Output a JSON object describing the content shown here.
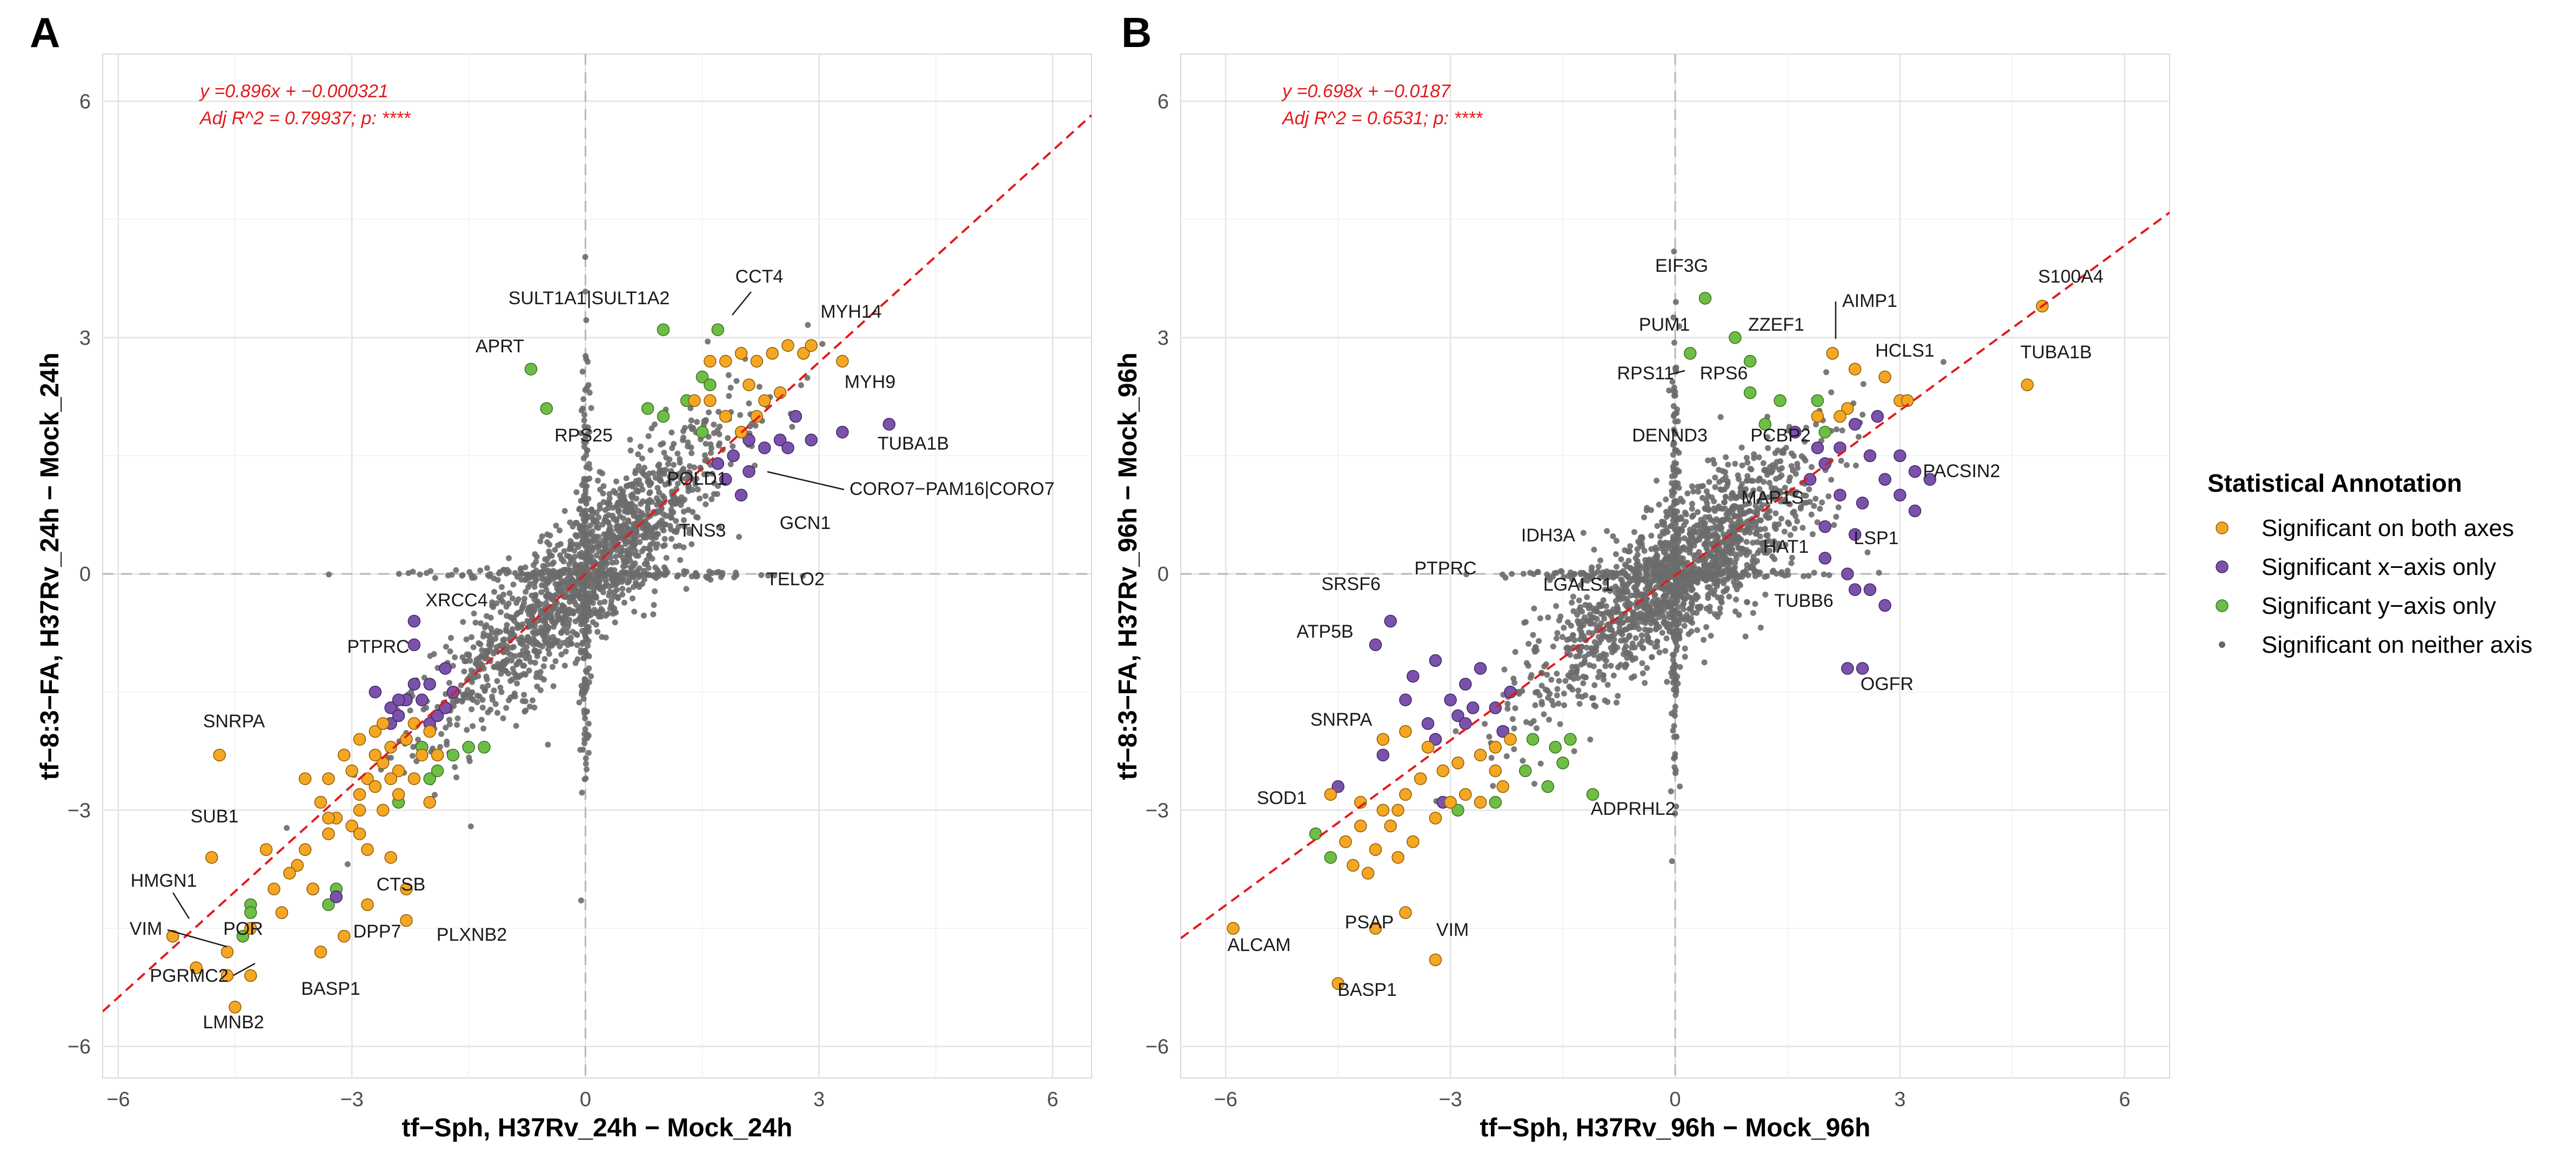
{
  "legend": {
    "title": "Statistical Annotation",
    "items": [
      {
        "label": "Significant on both axes",
        "color": "#F5A623",
        "size": "large"
      },
      {
        "label": "Significant x−axis only",
        "color": "#7B52AB",
        "size": "large"
      },
      {
        "label": "Significant y−axis only",
        "color": "#6DBE45",
        "size": "large"
      },
      {
        "label": "Significant on neither axis",
        "color": "#666666",
        "size": "small"
      }
    ]
  },
  "chart_data": [
    {
      "panel": "A",
      "type": "scatter",
      "xlabel": "tf−Sph, H37Rv_24h − Mock_24h",
      "ylabel": "tf−8:3−FA, H37Rv_24h − Mock_24h",
      "xlim": [
        -6.2,
        6.5
      ],
      "ylim": [
        -6.4,
        6.6
      ],
      "xticks": [
        -6,
        -3,
        0,
        3,
        6
      ],
      "yticks": [
        -6,
        -3,
        0,
        3,
        6
      ],
      "grid": true,
      "reference_lines": {
        "x": 0,
        "y": 0,
        "style": "dashed"
      },
      "regression": {
        "slope": 0.896,
        "intercept": -0.000321,
        "equation": "y =0.896x + −0.000321",
        "stats": "Adj R^2 = 0.79937; p: ****",
        "color": "#e31a1c"
      },
      "points": {
        "both": [
          [
            -4.7,
            -2.3
          ],
          [
            -4.8,
            -3.6
          ],
          [
            -4.6,
            -4.8
          ],
          [
            -5.0,
            -5.0
          ],
          [
            -4.6,
            -5.1
          ],
          [
            -5.3,
            -4.6
          ],
          [
            -4.3,
            -5.1
          ],
          [
            -4.5,
            -5.5
          ],
          [
            -4.3,
            -4.5
          ],
          [
            -4.0,
            -4.0
          ],
          [
            -3.9,
            -4.3
          ],
          [
            -3.5,
            -4.0
          ],
          [
            -3.4,
            -4.8
          ],
          [
            -3.1,
            -4.6
          ],
          [
            -3.7,
            -3.7
          ],
          [
            -3.6,
            -3.5
          ],
          [
            -3.3,
            -3.3
          ],
          [
            -3.2,
            -3.1
          ],
          [
            -3.0,
            -3.2
          ],
          [
            -2.9,
            -2.8
          ],
          [
            -2.8,
            -2.6
          ],
          [
            -2.6,
            -2.4
          ],
          [
            -2.5,
            -2.2
          ],
          [
            -2.4,
            -2.5
          ],
          [
            -2.3,
            -2.1
          ],
          [
            -2.2,
            -1.9
          ],
          [
            -2.1,
            -2.3
          ],
          [
            -2.0,
            -2.0
          ],
          [
            -2.7,
            -2.7
          ],
          [
            -2.6,
            -3.0
          ],
          [
            -2.9,
            -3.3
          ],
          [
            -3.3,
            -3.1
          ],
          [
            -3.6,
            -2.6
          ],
          [
            -3.4,
            -2.9
          ],
          [
            -2.9,
            -2.1
          ],
          [
            -2.7,
            -2.0
          ],
          [
            -3.0,
            -2.5
          ],
          [
            -2.5,
            -3.6
          ],
          [
            -2.3,
            -4.0
          ],
          [
            -2.3,
            -4.4
          ],
          [
            -2.8,
            -4.2
          ],
          [
            -2.8,
            -3.5
          ],
          [
            -3.8,
            -3.8
          ],
          [
            -4.1,
            -3.5
          ],
          [
            -3.3,
            -2.6
          ],
          [
            -2.0,
            -2.9
          ],
          [
            -1.9,
            -2.3
          ],
          [
            -2.2,
            -2.6
          ],
          [
            -2.4,
            -2.8
          ],
          [
            -2.6,
            -1.9
          ],
          [
            -3.1,
            -2.3
          ],
          [
            -2.9,
            -3.0
          ],
          [
            -2.7,
            -2.3
          ],
          [
            -2.5,
            -2.6
          ],
          [
            1.6,
            2.7
          ],
          [
            1.8,
            2.7
          ],
          [
            2.0,
            2.8
          ],
          [
            2.2,
            2.7
          ],
          [
            2.4,
            2.8
          ],
          [
            2.6,
            2.9
          ],
          [
            2.8,
            2.8
          ],
          [
            3.3,
            2.7
          ],
          [
            2.3,
            2.2
          ],
          [
            2.5,
            2.3
          ],
          [
            1.6,
            2.2
          ],
          [
            1.4,
            2.2
          ],
          [
            2.1,
            2.4
          ],
          [
            2.2,
            2.0
          ],
          [
            1.8,
            2.0
          ],
          [
            2.0,
            1.8
          ],
          [
            2.9,
            2.9
          ]
        ],
        "x_only": [
          [
            -2.2,
            -0.6
          ],
          [
            -2.2,
            -0.9
          ],
          [
            -2.3,
            -1.6
          ],
          [
            -2.1,
            -1.6
          ],
          [
            -2.0,
            -1.4
          ],
          [
            -1.8,
            -1.2
          ],
          [
            -1.7,
            -1.5
          ],
          [
            -2.5,
            -1.7
          ],
          [
            -2.5,
            -1.9
          ],
          [
            -2.7,
            -1.5
          ],
          [
            -2.0,
            -1.9
          ],
          [
            -1.9,
            -1.8
          ],
          [
            -1.8,
            -1.7
          ],
          [
            -2.4,
            -1.6
          ],
          [
            -2.2,
            -1.4
          ],
          [
            -3.2,
            -4.1
          ],
          [
            -3.5,
            -4.0
          ],
          [
            -2.4,
            -1.8
          ],
          [
            3.9,
            1.9
          ],
          [
            3.3,
            1.8
          ],
          [
            2.9,
            1.7
          ],
          [
            2.5,
            1.7
          ],
          [
            2.3,
            1.6
          ],
          [
            1.9,
            1.5
          ],
          [
            2.1,
            1.3
          ],
          [
            1.8,
            1.2
          ],
          [
            2.0,
            1.0
          ],
          [
            2.7,
            2.0
          ],
          [
            2.6,
            1.6
          ],
          [
            2.1,
            1.7
          ],
          [
            1.7,
            1.4
          ]
        ],
        "y_only": [
          [
            -1.7,
            -2.3
          ],
          [
            -1.5,
            -2.2
          ],
          [
            -1.3,
            -2.2
          ],
          [
            -1.9,
            -2.3
          ],
          [
            -2.0,
            -2.6
          ],
          [
            -1.9,
            -2.5
          ],
          [
            -2.1,
            -2.2
          ],
          [
            -3.2,
            -4.0
          ],
          [
            -3.3,
            -4.2
          ],
          [
            -2.4,
            -2.9
          ],
          [
            -4.3,
            -4.2
          ],
          [
            -4.3,
            -4.3
          ],
          [
            -4.4,
            -4.6
          ],
          [
            -0.7,
            2.6
          ],
          [
            -0.5,
            2.1
          ],
          [
            1.0,
            3.1
          ],
          [
            1.7,
            3.1
          ],
          [
            0.8,
            2.1
          ],
          [
            1.0,
            2.0
          ],
          [
            1.3,
            2.2
          ],
          [
            1.5,
            2.5
          ],
          [
            1.6,
            2.4
          ],
          [
            1.5,
            1.8
          ]
        ]
      },
      "labels": [
        "SULT1A1|SULT1A2",
        "CCT4",
        "MYH14",
        "APRT",
        "MYH9",
        "TUBA1B",
        "RPS25",
        "POLD1",
        "CORO7−PAM16|CORO7",
        "TNS3",
        "GCN1",
        "TELO2",
        "XRCC4",
        "PTPRC",
        "SNRPA",
        "SUB1",
        "HMGN1",
        "VIM",
        "POR",
        "PGRMC2",
        "DPP7",
        "CTSB",
        "PLXNB2",
        "BASP1",
        "LMNB2"
      ]
    },
    {
      "panel": "B",
      "type": "scatter",
      "xlabel": "tf−Sph, H37Rv_96h − Mock_96h",
      "ylabel": "tf−8:3−FA, H37Rv_96h − Mock_96h",
      "xlim": [
        -6.6,
        6.6
      ],
      "ylim": [
        -6.4,
        6.6
      ],
      "xticks": [
        -6,
        -3,
        0,
        3,
        6
      ],
      "yticks": [
        -6,
        -3,
        0,
        3,
        6
      ],
      "grid": true,
      "reference_lines": {
        "x": 0,
        "y": 0,
        "style": "dashed"
      },
      "regression": {
        "slope": 0.698,
        "intercept": -0.0187,
        "equation": "y =0.698x + −0.0187",
        "stats": "Adj R^2 = 0.6531; p: ****",
        "color": "#e31a1c"
      },
      "points": {
        "both": [
          [
            4.9,
            3.4
          ],
          [
            4.7,
            2.4
          ],
          [
            2.1,
            2.8
          ],
          [
            2.4,
            2.6
          ],
          [
            2.8,
            2.5
          ],
          [
            3.0,
            2.2
          ],
          [
            3.1,
            2.2
          ],
          [
            2.3,
            2.1
          ],
          [
            2.2,
            2.0
          ],
          [
            1.9,
            2.0
          ],
          [
            -5.9,
            -4.5
          ],
          [
            -4.5,
            -5.2
          ],
          [
            -3.2,
            -4.9
          ],
          [
            -3.6,
            -4.3
          ],
          [
            -4.0,
            -4.5
          ],
          [
            -4.1,
            -3.8
          ],
          [
            -4.3,
            -3.7
          ],
          [
            -4.4,
            -3.4
          ],
          [
            -4.0,
            -3.5
          ],
          [
            -3.8,
            -3.2
          ],
          [
            -3.7,
            -3.0
          ],
          [
            -3.6,
            -2.8
          ],
          [
            -3.4,
            -2.6
          ],
          [
            -3.1,
            -2.5
          ],
          [
            -2.9,
            -2.4
          ],
          [
            -2.6,
            -2.3
          ],
          [
            -2.4,
            -2.2
          ],
          [
            -2.2,
            -2.1
          ],
          [
            -3.5,
            -3.4
          ],
          [
            -3.2,
            -3.1
          ],
          [
            -3.0,
            -2.9
          ],
          [
            -2.8,
            -2.8
          ],
          [
            -2.6,
            -2.9
          ],
          [
            -3.9,
            -3.0
          ],
          [
            -4.2,
            -2.9
          ],
          [
            -3.3,
            -2.2
          ],
          [
            -3.6,
            -2.0
          ],
          [
            -3.9,
            -2.1
          ],
          [
            -4.6,
            -2.8
          ],
          [
            -2.4,
            -2.5
          ],
          [
            -2.3,
            -2.7
          ],
          [
            -4.2,
            -3.2
          ],
          [
            -3.7,
            -3.6
          ]
        ],
        "x_only": [
          [
            -4.5,
            -2.7
          ],
          [
            -3.9,
            -2.3
          ],
          [
            -3.3,
            -1.9
          ],
          [
            -3.0,
            -1.6
          ],
          [
            -2.8,
            -1.4
          ],
          [
            -2.6,
            -1.2
          ],
          [
            -2.9,
            -1.8
          ],
          [
            -3.2,
            -2.1
          ],
          [
            -3.8,
            -0.6
          ],
          [
            -4.0,
            -0.9
          ],
          [
            -3.5,
            -1.3
          ],
          [
            -3.6,
            -1.6
          ],
          [
            -3.2,
            -1.1
          ],
          [
            -2.8,
            -1.9
          ],
          [
            -2.4,
            -1.7
          ],
          [
            -2.2,
            -1.5
          ],
          [
            -2.3,
            -2.0
          ],
          [
            -3.1,
            -2.9
          ],
          [
            -2.7,
            -1.7
          ],
          [
            3.0,
            1.5
          ],
          [
            2.6,
            1.5
          ],
          [
            3.2,
            1.3
          ],
          [
            2.8,
            1.2
          ],
          [
            3.0,
            1.0
          ],
          [
            2.5,
            0.9
          ],
          [
            3.2,
            0.8
          ],
          [
            2.0,
            0.6
          ],
          [
            2.4,
            0.5
          ],
          [
            2.0,
            0.2
          ],
          [
            2.3,
            0.0
          ],
          [
            2.6,
            -0.2
          ],
          [
            2.8,
            -0.4
          ],
          [
            2.4,
            -0.2
          ],
          [
            1.9,
            1.6
          ],
          [
            2.7,
            2.0
          ],
          [
            2.4,
            1.9
          ],
          [
            2.2,
            1.6
          ],
          [
            2.0,
            1.4
          ],
          [
            1.8,
            1.2
          ],
          [
            2.3,
            -1.2
          ],
          [
            2.5,
            -1.2
          ],
          [
            1.6,
            1.8
          ],
          [
            2.2,
            1.0
          ],
          [
            3.4,
            1.2
          ]
        ],
        "y_only": [
          [
            0.4,
            3.5
          ],
          [
            0.2,
            2.8
          ],
          [
            0.8,
            3.0
          ],
          [
            1.0,
            2.7
          ],
          [
            1.0,
            2.3
          ],
          [
            1.4,
            2.2
          ],
          [
            1.2,
            1.9
          ],
          [
            1.9,
            2.2
          ],
          [
            2.0,
            1.8
          ],
          [
            -2.0,
            -2.5
          ],
          [
            -1.6,
            -2.2
          ],
          [
            -1.4,
            -2.1
          ],
          [
            -1.9,
            -2.1
          ],
          [
            -1.7,
            -2.7
          ],
          [
            -1.5,
            -2.4
          ],
          [
            -1.1,
            -2.8
          ],
          [
            -2.9,
            -3.0
          ],
          [
            -4.6,
            -3.6
          ],
          [
            -4.8,
            -3.3
          ],
          [
            -2.4,
            -2.9
          ]
        ]
      },
      "labels": [
        "EIF3G",
        "S100A4",
        "AIMP1",
        "PUM1",
        "ZZEF1",
        "HCLS1",
        "TUBA1B",
        "RPS11",
        "RPS6",
        "DENND3",
        "PCBP2",
        "PACSIN2",
        "MAP1S",
        "IDH3A",
        "HAT1",
        "LSP1",
        "PTPRC",
        "LGALS1",
        "SRSF6",
        "TUBB6",
        "ATP5B",
        "OGFR",
        "SNRPA",
        "ADPRHL2",
        "SOD1",
        "PSAP",
        "VIM",
        "ALCAM",
        "BASP1"
      ]
    }
  ]
}
